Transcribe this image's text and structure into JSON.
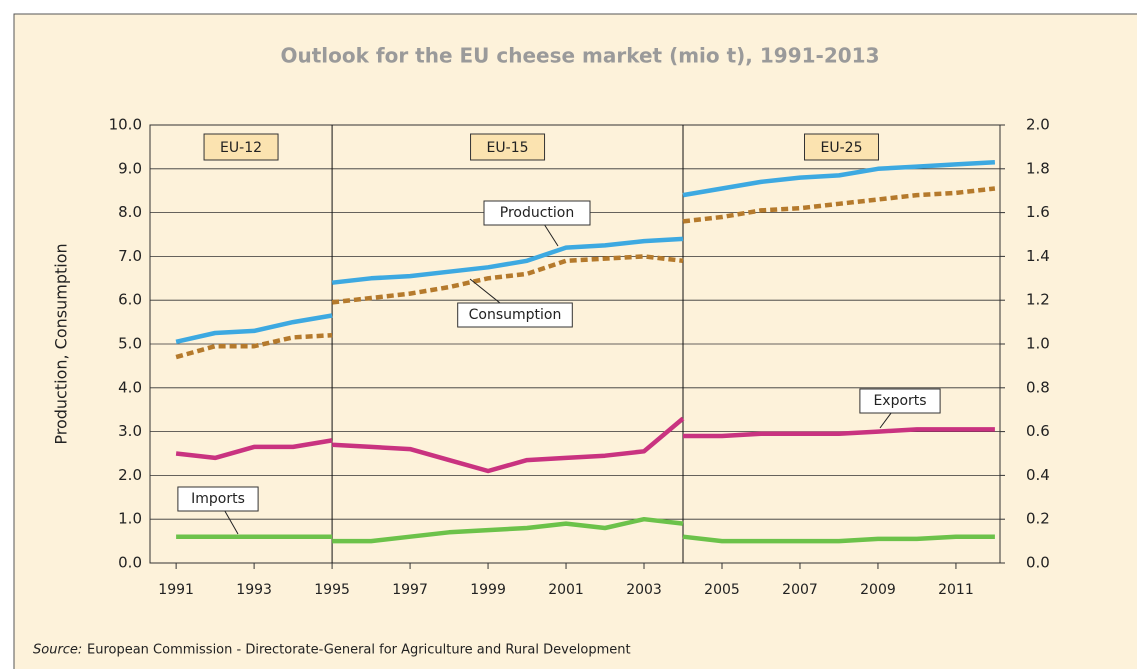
{
  "chart_data": {
    "type": "line",
    "title": "Outlook for the EU cheese market (mio t), 1991-2013",
    "y_label": "Production, Consumption",
    "x": [
      1991,
      1992,
      1993,
      1994,
      1995,
      1995,
      1995,
      1996,
      1997,
      1998,
      1999,
      2000,
      2001,
      2002,
      2003,
      2004,
      2004,
      2004,
      2005,
      2006,
      2007,
      2008,
      2009,
      2010,
      2011,
      2012
    ],
    "series": [
      {
        "name": "Production",
        "color": "#3da9e1",
        "dashed": false,
        "values": [
          5.05,
          5.25,
          5.3,
          5.5,
          5.65,
          null,
          6.4,
          6.5,
          6.55,
          6.65,
          6.75,
          6.9,
          7.2,
          7.25,
          7.35,
          7.4,
          null,
          8.4,
          8.55,
          8.7,
          8.8,
          8.85,
          9.0,
          9.05,
          9.1,
          9.15
        ]
      },
      {
        "name": "Consumption",
        "color": "#b57a2c",
        "dashed": true,
        "values": [
          4.7,
          4.95,
          4.95,
          5.15,
          5.2,
          null,
          5.95,
          6.05,
          6.15,
          6.3,
          6.5,
          6.6,
          6.9,
          6.95,
          7.0,
          6.9,
          null,
          7.8,
          7.9,
          8.05,
          8.1,
          8.2,
          8.3,
          8.4,
          8.45,
          8.55
        ]
      },
      {
        "name": "Exports",
        "color": "#c93380",
        "dashed": false,
        "axis": "y2",
        "values": [
          0.5,
          0.48,
          0.53,
          0.53,
          0.56,
          null,
          0.54,
          0.53,
          0.52,
          0.47,
          0.42,
          0.47,
          0.48,
          0.49,
          0.51,
          0.66,
          null,
          0.58,
          0.58,
          0.59,
          0.59,
          0.59,
          0.6,
          0.61,
          0.61,
          0.61
        ]
      },
      {
        "name": "Imports",
        "color": "#6cc24a",
        "dashed": false,
        "axis": "y2",
        "values": [
          0.12,
          0.12,
          0.12,
          0.12,
          0.12,
          null,
          0.1,
          0.1,
          0.12,
          0.14,
          0.15,
          0.16,
          0.18,
          0.16,
          0.2,
          0.18,
          null,
          0.12,
          0.1,
          0.1,
          0.1,
          0.1,
          0.11,
          0.11,
          0.12,
          0.12
        ]
      }
    ],
    "xlim": [
      1990.33,
      2012.13
    ],
    "xticks": [
      1991,
      1993,
      1995,
      1997,
      1999,
      2001,
      2003,
      2005,
      2007,
      2009,
      2011
    ],
    "ylim": [
      0,
      10
    ],
    "yticks": [
      {
        "value": 0,
        "label": "0.0"
      },
      {
        "value": 1,
        "label": "1.0"
      },
      {
        "value": 2,
        "label": "2.0"
      },
      {
        "value": 3,
        "label": "3.0"
      },
      {
        "value": 4,
        "label": "4.0"
      },
      {
        "value": 5,
        "label": "5.0"
      },
      {
        "value": 6,
        "label": "6.0"
      },
      {
        "value": 7,
        "label": "7.0"
      },
      {
        "value": 8,
        "label": "8.0"
      },
      {
        "value": 9,
        "label": "9.0"
      },
      {
        "value": 10,
        "label": "10.0"
      }
    ],
    "y2lim": [
      0,
      2
    ],
    "y2ticks": [
      {
        "value": 0,
        "label": "0.0"
      },
      {
        "value": 0.2,
        "label": "0.2"
      },
      {
        "value": 0.4,
        "label": "0.4"
      },
      {
        "value": 0.6,
        "label": "0.6"
      },
      {
        "value": 0.8,
        "label": "0.8"
      },
      {
        "value": 1,
        "label": "1.0"
      },
      {
        "value": 1.2,
        "label": "1.2"
      },
      {
        "value": 1.4,
        "label": "1.4"
      },
      {
        "value": 1.6,
        "label": "1.6"
      },
      {
        "value": 1.8,
        "label": "1.8"
      },
      {
        "value": 2,
        "label": "2.0"
      }
    ],
    "grid": true,
    "dividers": [
      1995,
      2004
    ],
    "regions": [
      "EU-12",
      "EU-15",
      "EU-25"
    ],
    "source_label": "Source:",
    "source": "European Commission - Directorate-General for Agriculture and Rural Development"
  }
}
